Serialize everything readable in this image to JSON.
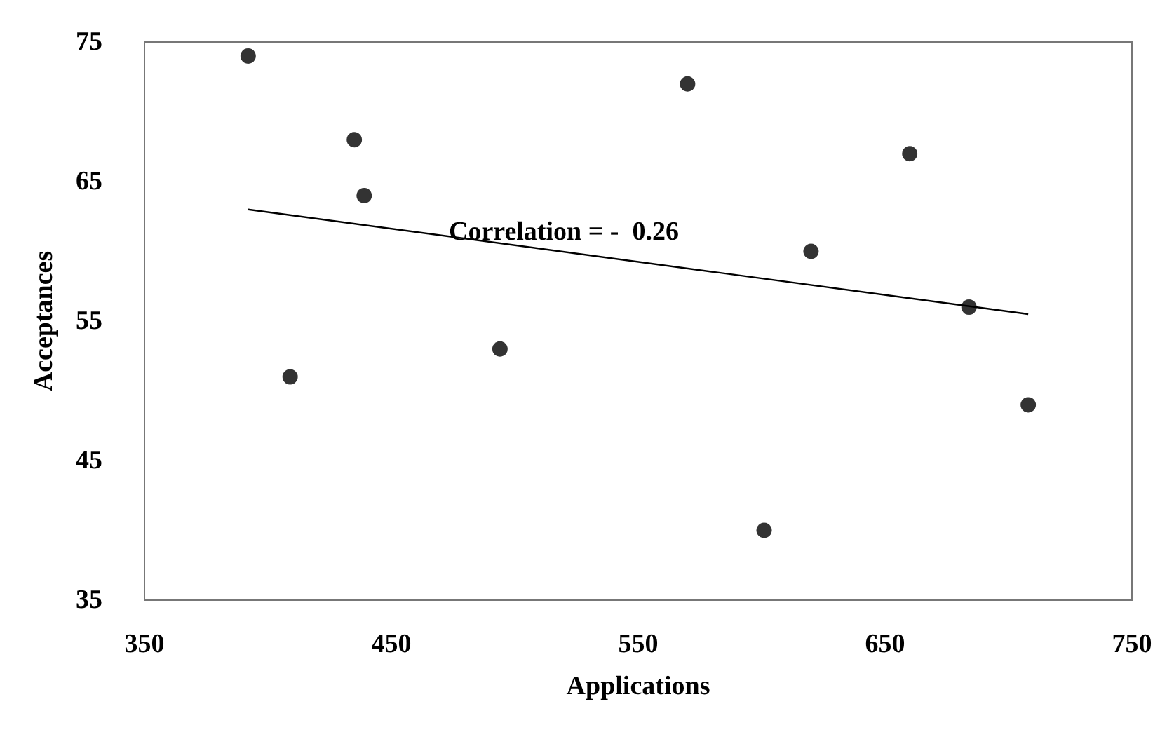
{
  "chart_data": {
    "type": "scatter",
    "xlabel": "Applications",
    "ylabel": "Acceptances",
    "xlim": [
      350,
      750
    ],
    "xticks": [
      350,
      450,
      550,
      650,
      750
    ],
    "ylim": [
      35,
      75
    ],
    "yticks": [
      35,
      45,
      55,
      65,
      75
    ],
    "grid": false,
    "marker": "circle",
    "annotations": [
      "Correlation = -  0.26"
    ],
    "series": [
      {
        "color": "#000000",
        "x": [
          392,
          409,
          435,
          439,
          494,
          570,
          601,
          620,
          660,
          684,
          708
        ],
        "values": [
          74,
          51,
          68,
          64,
          53,
          72,
          40,
          60,
          67,
          56,
          49
        ]
      },
      {
        "type": "line",
        "color": "#000000",
        "marker": "none",
        "line_style": "solid",
        "x": [
          392,
          708
        ],
        "values": [
          63,
          55.5
        ]
      }
    ]
  }
}
